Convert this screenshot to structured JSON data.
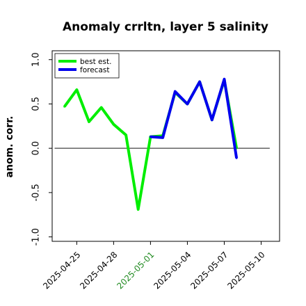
{
  "chart_data": {
    "type": "line",
    "title": "Anomaly crrltn, layer 5 salinity",
    "ylabel": "anom. corr.",
    "xlabel": "",
    "ylim": [
      -1.05,
      1.1
    ],
    "yticks": [
      -1.0,
      -0.5,
      0.0,
      0.5,
      1.0
    ],
    "ytick_labels": [
      "-1.0",
      "-0.5",
      "0.0",
      "0.5",
      "1.0"
    ],
    "xlim": [
      "2025-04-23T00:00",
      "2025-05-11T12:00"
    ],
    "xticks": [
      "2025-04-25",
      "2025-04-28",
      "2025-05-01",
      "2025-05-04",
      "2025-05-07",
      "2025-05-10"
    ],
    "xtick_labels": [
      "2025-04-25",
      "2025-04-28",
      "2025-05-01",
      "2025-05-04",
      "2025-05-07",
      "2025-05-10"
    ],
    "highlight_tick": "2025-05-01",
    "highlight_color": "#228b22",
    "reference_line_y": 0.0,
    "reference_line_color": "#555555",
    "legend": "top-left",
    "grid": false,
    "series": [
      {
        "name": "best est.",
        "color": "#00ee00",
        "x": [
          "2025-04-24",
          "2025-04-25",
          "2025-04-26",
          "2025-04-27",
          "2025-04-28",
          "2025-04-29",
          "2025-04-30",
          "2025-05-01",
          "2025-05-02",
          "2025-05-03",
          "2025-05-04",
          "2025-05-05",
          "2025-05-06",
          "2025-05-07",
          "2025-05-08"
        ],
        "y": [
          0.47,
          0.66,
          0.3,
          0.46,
          0.27,
          0.15,
          -0.69,
          0.13,
          0.14,
          0.63,
          0.5,
          0.75,
          0.32,
          0.77,
          0.0
        ]
      },
      {
        "name": "forecast",
        "color": "#0000ee",
        "x": [
          "2025-05-01",
          "2025-05-02",
          "2025-05-03",
          "2025-05-04",
          "2025-05-05",
          "2025-05-06",
          "2025-05-07",
          "2025-05-08"
        ],
        "y": [
          0.13,
          0.12,
          0.64,
          0.5,
          0.75,
          0.32,
          0.78,
          -0.11
        ]
      }
    ]
  }
}
